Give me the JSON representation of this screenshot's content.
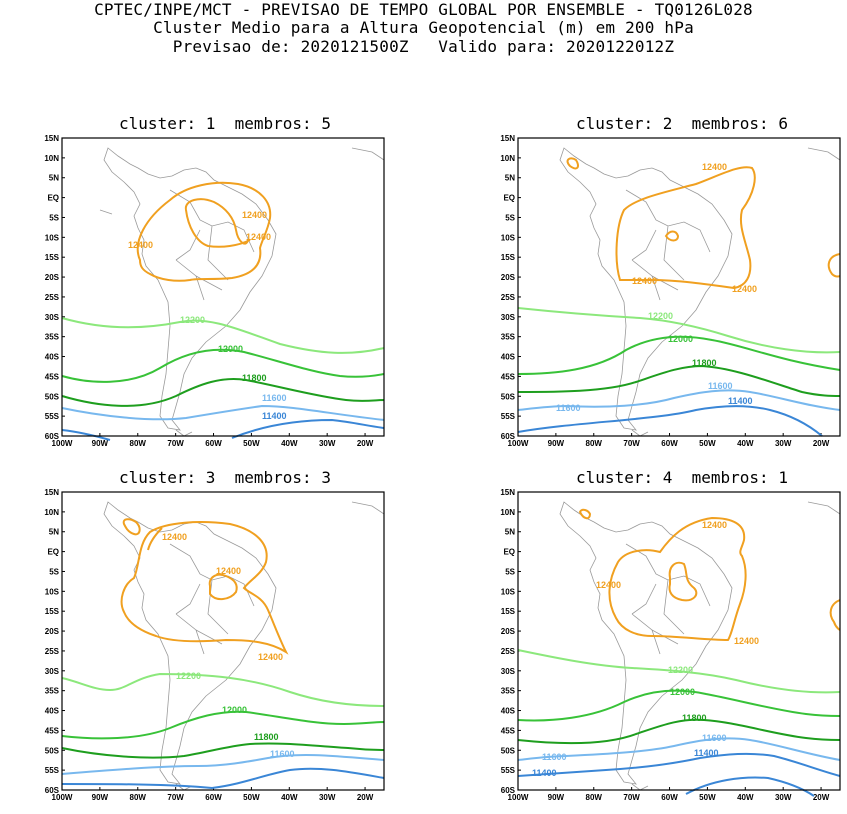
{
  "header": {
    "line1": "CPTEC/INPE/MCT - PREVISAO DE TEMPO GLOBAL POR ENSEMBLE - TQ0126L028",
    "line2": "Cluster Medio para a Altura Geopotencial (m) em 200 hPa",
    "line3": "Previsao de: 2020121500Z   Valido para: 2020122012Z"
  },
  "axes": {
    "lat_labels": [
      "15N",
      "10N",
      "5N",
      "EQ",
      "5S",
      "10S",
      "15S",
      "20S",
      "25S",
      "30S",
      "35S",
      "40S",
      "45S",
      "50S",
      "55S",
      "60S"
    ],
    "lon_labels": [
      "100W",
      "90W",
      "80W",
      "70W",
      "60W",
      "50W",
      "40W",
      "30W",
      "20W"
    ]
  },
  "colors": {
    "c12400": "#f0a020",
    "c12200": "#8ce87c",
    "c12000": "#38c238",
    "c11800": "#1e9e1e",
    "c11600": "#78b8ee",
    "c11400": "#3a86d6",
    "coast": "#9a9a9a",
    "frame": "#000000"
  },
  "panels": [
    {
      "title": "cluster: 1  membros: 5",
      "labels": {
        "l12400a": "12400",
        "l12400b": "12400",
        "l12400c": "12400",
        "l12200": "12200",
        "l12000": "12000",
        "l11800": "11800",
        "l11600": "11600",
        "l11400": "11400"
      }
    },
    {
      "title": "cluster: 2  membros: 6",
      "labels": {
        "l12400a": "12400",
        "l12400b": "12400",
        "l12400c": "12400",
        "l12200": "12200",
        "l12000": "12000",
        "l11800": "11800",
        "l11600a": "11600",
        "l11600b": "11600",
        "l11400": "11400"
      }
    },
    {
      "title": "cluster: 3  membros: 3",
      "labels": {
        "l12400a": "12400",
        "l12400b": "12400",
        "l12400c": "12400",
        "l12200": "12200",
        "l12000": "12000",
        "l11800": "11800",
        "l11600": "11600"
      }
    },
    {
      "title": "cluster: 4  membros: 1",
      "labels": {
        "l12400a": "12400",
        "l12400b": "12400",
        "l12400c": "12400",
        "l12200": "12200",
        "l12000": "12000",
        "l11800": "11800",
        "l11600a": "11600",
        "l11600b": "11600",
        "l11400a": "11400",
        "l11400b": "11400"
      }
    }
  ]
}
